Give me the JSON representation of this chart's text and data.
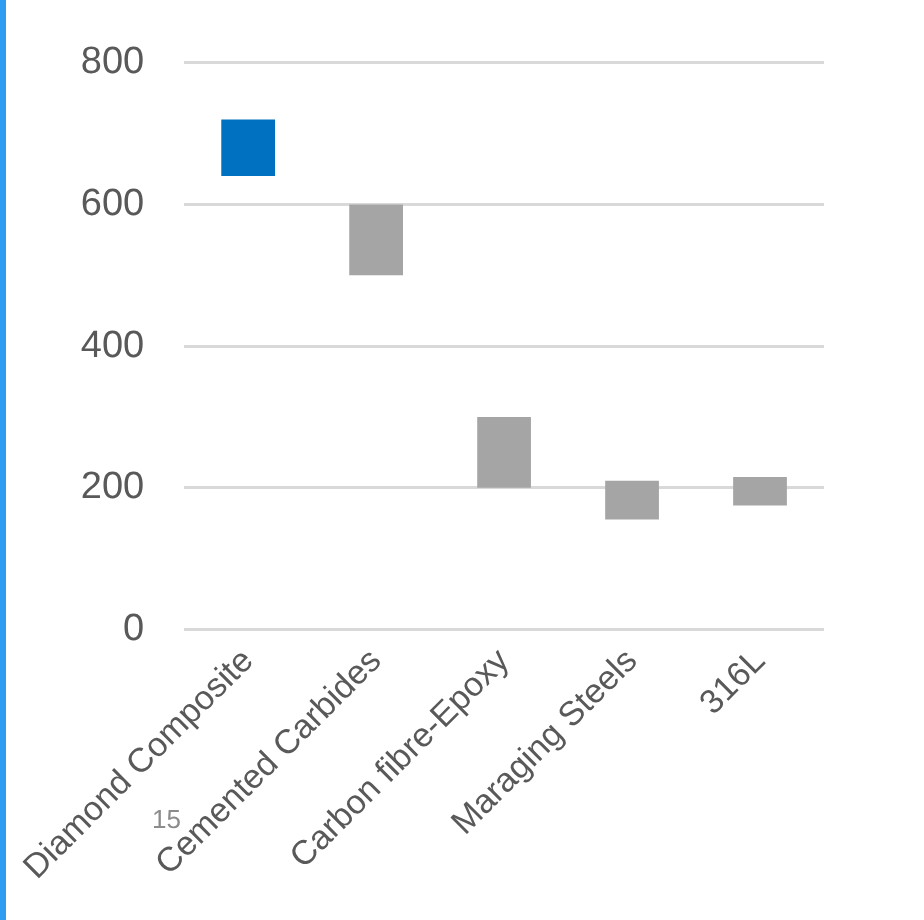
{
  "chart_data": {
    "type": "bar",
    "categories": [
      "Diamond Composite",
      "Cemented Carbides",
      "Carbon fibre-Epoxy",
      "Maraging Steels",
      "316L"
    ],
    "base": [
      640,
      500,
      200,
      155,
      175
    ],
    "values": [
      80,
      100,
      100,
      55,
      40
    ],
    "colors": [
      "#0070c0",
      "#a5a5a5",
      "#a5a5a5",
      "#a5a5a5",
      "#a5a5a5"
    ],
    "ylim": [
      0,
      800
    ],
    "yticks": [
      0,
      200,
      400,
      600,
      800
    ],
    "grid": "y",
    "legend": false,
    "annotations": [
      "15"
    ]
  }
}
